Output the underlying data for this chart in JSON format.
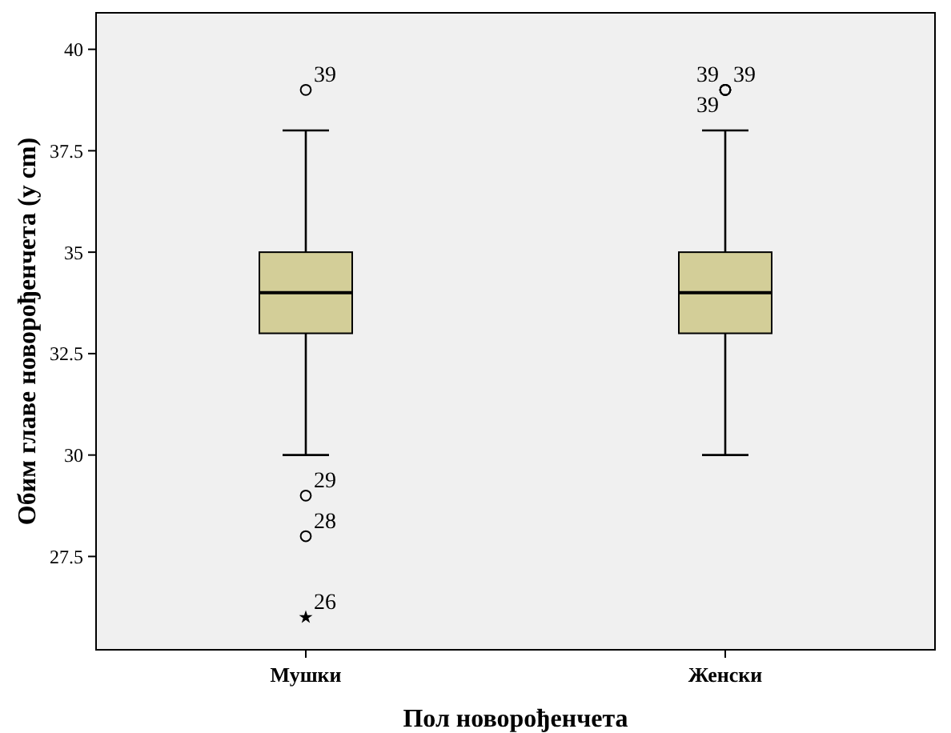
{
  "chart_data": {
    "type": "box",
    "xlabel": "Пол новорођенчета",
    "ylabel": "Обим главе новорођенчета (у cm)",
    "categories": [
      "Мушки",
      "Женски"
    ],
    "boxes": [
      {
        "low": 30,
        "q1": 33,
        "median": 34,
        "q3": 35,
        "high": 38,
        "outliers": [
          39,
          29,
          28,
          26
        ]
      },
      {
        "low": 30,
        "q1": 33,
        "median": 34,
        "q3": 35,
        "high": 38,
        "outliers": [
          39,
          39,
          39
        ]
      }
    ],
    "color": "#d3ce98",
    "ylim": [
      25.2,
      40.9
    ],
    "yticks": [
      27.5,
      30,
      32.5,
      35,
      37.5,
      40
    ],
    "grid": false,
    "annotations": [
      "39",
      "29",
      "28",
      "26",
      "39",
      "39",
      "39"
    ]
  }
}
